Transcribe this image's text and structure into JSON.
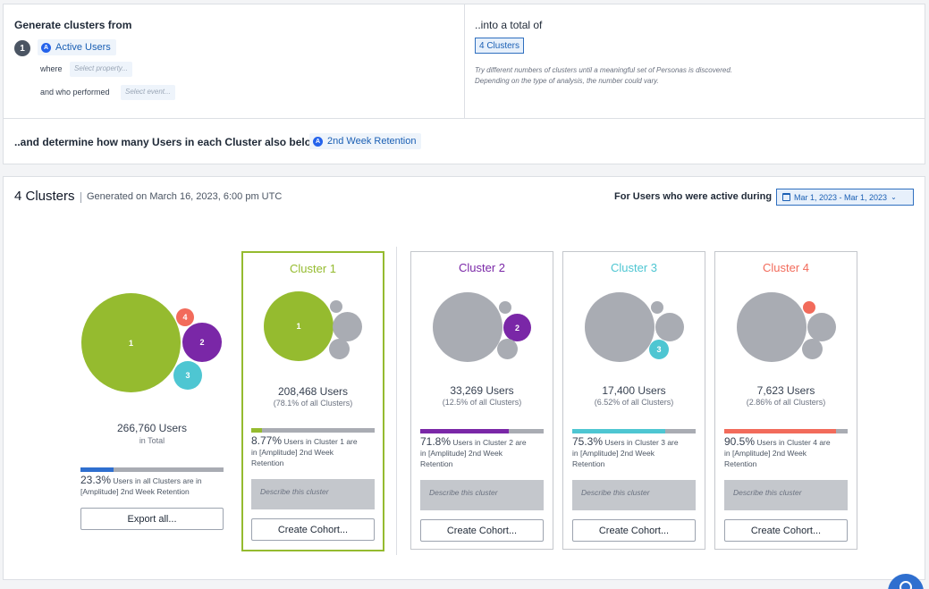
{
  "setup": {
    "generate_label": "Generate clusters from",
    "step_number": "1",
    "source_chip": "Active Users",
    "where_label": "where",
    "property_placeholder": "Select property...",
    "performed_label": "and who performed",
    "event_placeholder": "Select event...",
    "total_label": "..into a total of",
    "cluster_count_chip": "4 Clusters",
    "hint_line1": "Try different numbers of clusters until a meaningful set of Personas is discovered.",
    "hint_line2": "Depending on the type of analysis, the number could vary.",
    "determine_label": "..and determine how many Users in each Cluster also belong to",
    "retention_chip": "2nd Week Retention"
  },
  "results": {
    "title": "4 Clusters",
    "generated": "Generated on March 16, 2023, 6:00 pm UTC",
    "active_label": "For Users who were active during",
    "date_range": "Mar 1, 2023 - Mar 1, 2023",
    "overview": {
      "total_users": "266,760 Users",
      "in_total": "in Total",
      "pct_value": "23.3%",
      "pct_fraction": 0.233,
      "pct_line1": "Users in all Clusters are in",
      "pct_line2": "[Amplitude] 2nd Week Retention",
      "export_label": "Export all..."
    },
    "colors": {
      "c1": "#95bb2f",
      "c2": "#7a27a7",
      "c3": "#4ec6d2",
      "c4": "#f26b5b",
      "grey": "#a9acb3",
      "blue": "#2f6fcf"
    },
    "clusters": [
      {
        "title": "Cluster 1",
        "bubble": "1",
        "users": "208,468 Users",
        "pct": "(78.1% of all Clusters)",
        "retention": "8.77%",
        "fraction": 0.0877,
        "line1": "Users in Cluster 1 are",
        "line2": "in [Amplitude] 2nd Week",
        "line3": "Retention",
        "describe": "Describe this cluster",
        "cohort": "Create Cohort..."
      },
      {
        "title": "Cluster 2",
        "bubble": "2",
        "users": "33,269 Users",
        "pct": "(12.5% of all Clusters)",
        "retention": "71.8%",
        "fraction": 0.718,
        "line1": "Users in Cluster 2 are",
        "line2": "in [Amplitude] 2nd Week",
        "line3": "Retention",
        "describe": "Describe this cluster",
        "cohort": "Create Cohort..."
      },
      {
        "title": "Cluster 3",
        "bubble": "3",
        "users": "17,400 Users",
        "pct": "(6.52% of all Clusters)",
        "retention": "75.3%",
        "fraction": 0.753,
        "line1": "Users in Cluster 3 are",
        "line2": "in [Amplitude] 2nd Week",
        "line3": "Retention",
        "describe": "Describe this cluster",
        "cohort": "Create Cohort..."
      },
      {
        "title": "Cluster 4",
        "bubble": "4",
        "users": "7,623 Users",
        "pct": "(2.86% of all Clusters)",
        "retention": "90.5%",
        "fraction": 0.905,
        "line1": "Users in Cluster 4 are",
        "line2": "in [Amplitude] 2nd Week",
        "line3": "Retention",
        "describe": "Describe this cluster",
        "cohort": "Create Cohort..."
      }
    ]
  }
}
